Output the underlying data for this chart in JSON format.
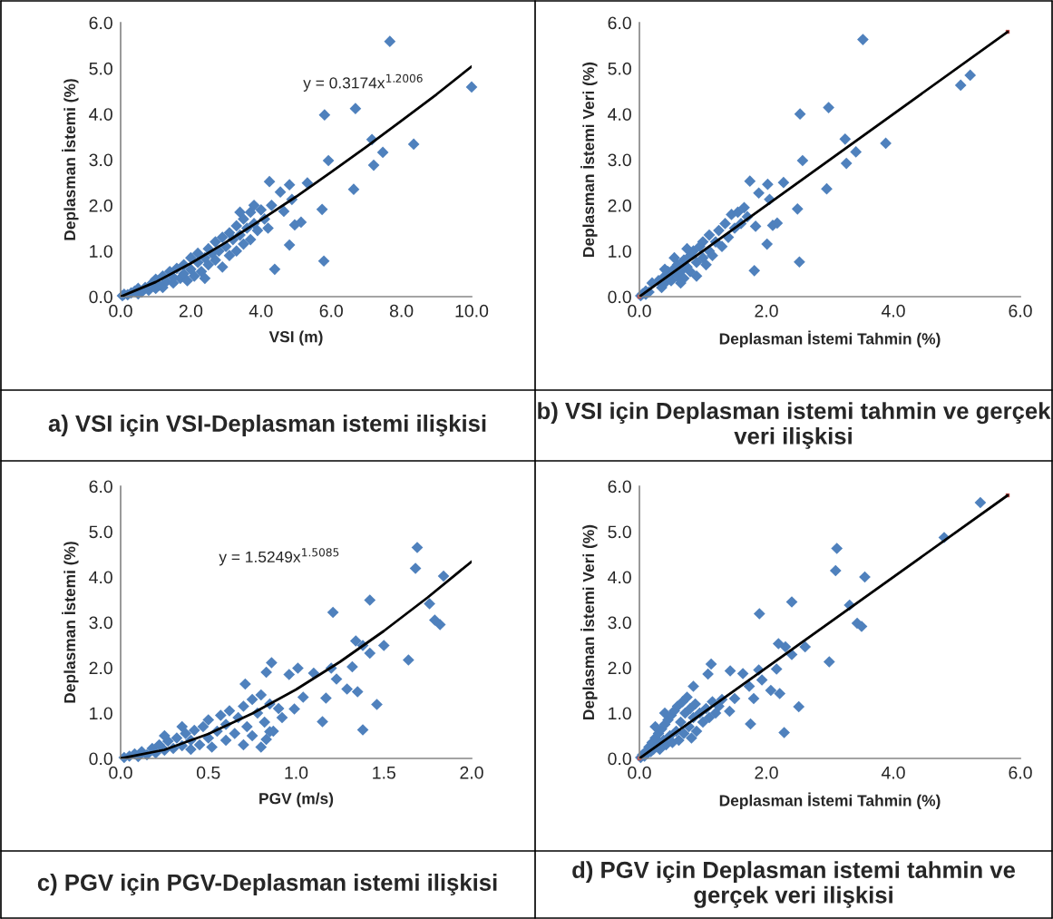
{
  "chart_data": [
    {
      "type": "scatter",
      "title": "a) VSI için VSI-Deplasman istemi ilişkisi",
      "xlabel": "VSI (m)",
      "ylabel": "Deplasman İstemi (%)",
      "xlim": [
        0,
        10
      ],
      "ylim": [
        0,
        6
      ],
      "xticks": [
        {
          "value": 0,
          "label": "0.0"
        },
        {
          "value": 2,
          "label": "2.0"
        },
        {
          "value": 4,
          "label": "4.0"
        },
        {
          "value": 6,
          "label": "6.0"
        },
        {
          "value": 8,
          "label": "8.0"
        },
        {
          "value": 10,
          "label": "10.0"
        }
      ],
      "yticks": [
        {
          "value": 0,
          "label": "0.0"
        },
        {
          "value": 1,
          "label": "1.0"
        },
        {
          "value": 2,
          "label": "2.0"
        },
        {
          "value": 3,
          "label": "3.0"
        },
        {
          "value": 4,
          "label": "4.0"
        },
        {
          "value": 5,
          "label": "5.0"
        },
        {
          "value": 6,
          "label": "6.0"
        }
      ],
      "annotations": [
        "y = 0.3174x$^{1.2006}$"
      ],
      "series": [
        {
          "marker": "diamond",
          "color": "#4f81bd",
          "x": [
            7.67,
            5.81,
            6.69,
            7.16,
            8.35,
            7.47,
            7.21,
            5.92,
            6.64,
            5.74,
            5.79,
            4.39,
            4.81,
            4.24,
            4.81,
            5.32,
            4.55,
            4.88,
            4.96,
            5.14,
            4.65,
            10.0,
            0.05,
            0.1,
            0.2,
            0.3,
            0.4,
            0.5,
            0.5,
            0.6,
            0.7,
            0.8,
            0.9,
            1.0,
            1.0,
            1.1,
            1.2,
            1.2,
            1.3,
            1.4,
            1.5,
            1.5,
            1.6,
            1.7,
            1.8,
            1.8,
            1.9,
            2.0,
            2.0,
            2.1,
            2.2,
            2.2,
            2.3,
            2.4,
            2.4,
            2.5,
            2.5,
            2.6,
            2.7,
            2.7,
            2.8,
            2.9,
            2.9,
            3.0,
            3.1,
            3.1,
            3.2,
            3.3,
            3.3,
            3.4,
            3.5,
            3.5,
            3.6,
            3.7,
            3.7,
            3.8,
            3.9,
            4.0,
            4.1,
            4.2,
            4.3,
            3.8,
            3.4
          ],
          "values": [
            5.59,
            3.98,
            4.12,
            3.44,
            3.34,
            3.16,
            2.88,
            2.98,
            2.35,
            1.91,
            0.78,
            0.6,
            1.13,
            2.52,
            2.45,
            2.49,
            2.29,
            2.13,
            1.57,
            1.63,
            1.87,
            4.59,
            0.02,
            0.05,
            0.04,
            0.08,
            0.12,
            0.06,
            0.18,
            0.1,
            0.2,
            0.14,
            0.3,
            0.18,
            0.38,
            0.25,
            0.45,
            0.2,
            0.33,
            0.55,
            0.3,
            0.42,
            0.62,
            0.4,
            0.7,
            0.5,
            0.35,
            0.6,
            0.85,
            0.45,
            0.75,
            0.95,
            0.55,
            0.85,
            0.4,
            1.05,
            0.7,
            0.95,
            1.2,
            0.8,
            1.0,
            1.3,
            0.65,
            1.1,
            1.4,
            0.9,
            1.25,
            1.55,
            1.0,
            1.35,
            1.7,
            1.15,
            1.5,
            1.85,
            1.25,
            1.6,
            1.45,
            1.9,
            1.7,
            1.5,
            2.0,
            2.0,
            1.85
          ]
        },
        {
          "type": "line",
          "color": "#000000",
          "x": [
            0,
            1,
            2,
            3,
            4,
            5,
            6,
            7,
            8,
            9,
            10
          ],
          "values": [
            0,
            0.32,
            0.73,
            1.19,
            1.68,
            2.19,
            2.73,
            3.28,
            3.85,
            4.43,
            5.04
          ]
        }
      ]
    },
    {
      "type": "scatter",
      "title": "b) VSI için Deplasman istemi tahmin ve gerçek veri ilişkisi",
      "xlabel": "Deplasman İstemi Tahmin (%)",
      "ylabel": "Deplasman İstemi Veri (%)",
      "xlim": [
        0,
        6
      ],
      "ylim": [
        0,
        6
      ],
      "xticks": [
        {
          "value": 0,
          "label": "0.0"
        },
        {
          "value": 2,
          "label": "2.0"
        },
        {
          "value": 4,
          "label": "4.0"
        },
        {
          "value": 6,
          "label": "6.0"
        }
      ],
      "yticks": [
        {
          "value": 0,
          "label": "0.0"
        },
        {
          "value": 1,
          "label": "1.0"
        },
        {
          "value": 2,
          "label": "2.0"
        },
        {
          "value": 3,
          "label": "3.0"
        },
        {
          "value": 4,
          "label": "4.0"
        },
        {
          "value": 5,
          "label": "5.0"
        },
        {
          "value": 6,
          "label": "6.0"
        }
      ],
      "series": [
        {
          "marker": "diamond",
          "color": "#4f81bd",
          "x": [
            3.52,
            5.06,
            5.21,
            2.53,
            2.98,
            3.24,
            3.88,
            3.41,
            3.26,
            2.57,
            2.95,
            2.49,
            2.52,
            1.81,
            2.01,
            1.74,
            2.02,
            2.27,
            1.88,
            2.05,
            2.1,
            2.17,
            1.83,
            0.02,
            0.05,
            0.1,
            0.1,
            0.15,
            0.3,
            0.35,
            0.4,
            0.4,
            0.45,
            0.5,
            0.5,
            0.55,
            0.6,
            0.6,
            0.65,
            0.7,
            0.7,
            0.75,
            0.8,
            0.8,
            0.85,
            0.9,
            0.9,
            0.95,
            1.0,
            1.0,
            1.05,
            1.1,
            1.1,
            1.15,
            1.2,
            1.25,
            1.3,
            1.35,
            1.4,
            1.45,
            1.5,
            1.55,
            1.6,
            1.65,
            1.7,
            0.55,
            0.75,
            0.65,
            0.4,
            0.2
          ],
          "values": [
            5.63,
            4.63,
            4.85,
            4.0,
            4.14,
            3.45,
            3.36,
            3.17,
            2.92,
            2.98,
            2.36,
            1.92,
            0.76,
            0.57,
            1.15,
            2.53,
            2.46,
            2.5,
            2.27,
            2.13,
            1.56,
            1.61,
            1.54,
            0.02,
            0.06,
            0.05,
            0.12,
            0.1,
            0.35,
            0.2,
            0.45,
            0.3,
            0.55,
            0.35,
            0.5,
            0.62,
            0.45,
            0.7,
            0.55,
            0.8,
            0.4,
            0.65,
            0.9,
            0.55,
            1.0,
            0.75,
            0.45,
            1.1,
            0.85,
            1.2,
            0.7,
            1.0,
            1.35,
            0.9,
            1.2,
            1.45,
            1.1,
            1.6,
            1.3,
            1.8,
            1.5,
            1.85,
            1.6,
            1.95,
            1.75,
            0.85,
            1.05,
            0.3,
            0.6,
            0.3
          ]
        },
        {
          "type": "line",
          "color": "#000000",
          "x": [
            0,
            5.8
          ],
          "values": [
            0,
            5.8
          ]
        },
        {
          "color": "#c0504d",
          "marker": "square",
          "x": [
            0,
            5.8
          ],
          "values": [
            0,
            5.8
          ]
        }
      ]
    },
    {
      "type": "scatter",
      "title": "c) PGV için PGV-Deplasman istemi ilişkisi",
      "xlabel": "PGV (m/s)",
      "ylabel": "Deplasman İstemi (%)",
      "xlim": [
        0,
        2
      ],
      "ylim": [
        0,
        6
      ],
      "xticks": [
        {
          "value": 0,
          "label": "0.0"
        },
        {
          "value": 0.5,
          "label": "0.5"
        },
        {
          "value": 1,
          "label": "1.0"
        },
        {
          "value": 1.5,
          "label": "1.5"
        },
        {
          "value": 2,
          "label": "2.0"
        }
      ],
      "yticks": [
        {
          "value": 0,
          "label": "0.0"
        },
        {
          "value": 1,
          "label": "1.0"
        },
        {
          "value": 2,
          "label": "2.0"
        },
        {
          "value": 3,
          "label": "3.0"
        },
        {
          "value": 4,
          "label": "4.0"
        },
        {
          "value": 5,
          "label": "5.0"
        },
        {
          "value": 6,
          "label": "6.0"
        }
      ],
      "annotations": [
        "y = 1.5249x$^{1.5085}$"
      ],
      "series": [
        {
          "marker": "diamond",
          "color": "#4f81bd",
          "x": [
            1.69,
            1.68,
            1.84,
            1.42,
            1.21,
            1.76,
            1.79,
            1.82,
            1.34,
            1.38,
            1.42,
            1.5,
            1.64,
            1.32,
            1.29,
            1.35,
            1.46,
            1.15,
            1.38,
            0.86,
            0.83,
            0.71,
            1.17,
            1.2,
            1.23,
            1.01,
            1.1,
            0.96,
            1.04,
            0.99,
            0.85,
            0.83,
            0.02,
            0.05,
            0.08,
            0.1,
            0.12,
            0.15,
            0.18,
            0.2,
            0.22,
            0.25,
            0.27,
            0.3,
            0.32,
            0.35,
            0.37,
            0.4,
            0.4,
            0.42,
            0.45,
            0.47,
            0.5,
            0.5,
            0.52,
            0.55,
            0.57,
            0.6,
            0.6,
            0.62,
            0.65,
            0.67,
            0.7,
            0.7,
            0.72,
            0.75,
            0.75,
            0.78,
            0.8,
            0.8,
            0.82,
            0.85,
            0.87,
            0.9,
            0.92,
            0.35,
            0.25
          ],
          "values": [
            4.65,
            4.19,
            4.02,
            3.49,
            3.22,
            3.41,
            3.05,
            2.95,
            2.59,
            2.49,
            2.32,
            2.49,
            2.17,
            2.02,
            1.53,
            1.47,
            1.19,
            0.81,
            0.63,
            2.11,
            1.9,
            1.64,
            1.33,
            1.99,
            1.75,
            1.99,
            1.88,
            1.85,
            1.35,
            1.09,
            0.59,
            0.42,
            0.02,
            0.05,
            0.1,
            0.04,
            0.15,
            0.08,
            0.22,
            0.12,
            0.3,
            0.18,
            0.38,
            0.22,
            0.45,
            0.28,
            0.55,
            0.2,
            0.4,
            0.62,
            0.3,
            0.7,
            0.45,
            0.85,
            0.25,
            0.6,
            0.95,
            0.4,
            0.75,
            1.05,
            0.55,
            0.9,
            0.3,
            1.15,
            0.7,
            1.3,
            0.5,
            1.0,
            0.25,
            1.4,
            0.8,
            1.2,
            0.6,
            1.1,
            0.9,
            0.7,
            0.5
          ]
        },
        {
          "type": "line",
          "color": "#000000",
          "x": [
            0,
            0.25,
            0.5,
            0.75,
            1.0,
            1.25,
            1.5,
            1.75,
            2.0
          ],
          "values": [
            0,
            0.19,
            0.54,
            0.99,
            1.52,
            2.13,
            2.81,
            3.55,
            4.34
          ]
        }
      ]
    },
    {
      "type": "scatter",
      "title": "d) PGV için Deplasman istemi tahmin ve gerçek veri ilişkisi",
      "xlabel": "Deplasman İstemi Tahmin (%)",
      "ylabel": "Deplasman İstemi Veri (%)",
      "xlim": [
        0,
        6
      ],
      "ylim": [
        0,
        6
      ],
      "xticks": [
        {
          "value": 0,
          "label": "0.0"
        },
        {
          "value": 2,
          "label": "2.0"
        },
        {
          "value": 4,
          "label": "4.0"
        },
        {
          "value": 6,
          "label": "6.0"
        }
      ],
      "yticks": [
        {
          "value": 0,
          "label": "0.0"
        },
        {
          "value": 1,
          "label": "1.0"
        },
        {
          "value": 2,
          "label": "2.0"
        },
        {
          "value": 3,
          "label": "3.0"
        },
        {
          "value": 4,
          "label": "4.0"
        },
        {
          "value": 5,
          "label": "5.0"
        },
        {
          "value": 6,
          "label": "6.0"
        }
      ],
      "series": [
        {
          "marker": "diamond",
          "color": "#4f81bd",
          "x": [
            5.37,
            4.8,
            3.11,
            3.09,
            3.55,
            2.4,
            3.31,
            1.89,
            3.43,
            3.5,
            2.19,
            2.3,
            2.4,
            2.61,
            2.99,
            2.16,
            2.07,
            2.21,
            2.51,
            1.75,
            2.28,
            1.13,
            1.08,
            0.85,
            1.8,
            1.88,
            1.93,
            1.73,
            1.43,
            1.63,
            1.5,
            1.42,
            0.02,
            0.05,
            0.08,
            0.1,
            0.12,
            0.15,
            0.18,
            0.2,
            0.22,
            0.25,
            0.28,
            0.3,
            0.32,
            0.35,
            0.38,
            0.4,
            0.42,
            0.45,
            0.48,
            0.5,
            0.52,
            0.55,
            0.58,
            0.6,
            0.62,
            0.65,
            0.68,
            0.7,
            0.72,
            0.75,
            0.78,
            0.8,
            0.82,
            0.85,
            0.88,
            0.9,
            0.95,
            1.0,
            1.05,
            1.1,
            1.15,
            1.2,
            1.25,
            0.4,
            0.25,
            1.3
          ],
          "values": [
            5.64,
            4.87,
            4.63,
            4.14,
            4.0,
            3.45,
            3.38,
            3.19,
            2.98,
            2.91,
            2.53,
            2.46,
            2.29,
            2.46,
            2.13,
            1.97,
            1.5,
            1.43,
            1.14,
            0.76,
            0.57,
            2.08,
            1.86,
            1.59,
            1.32,
            1.95,
            1.73,
            1.59,
            1.93,
            1.87,
            1.32,
            1.04,
            0.02,
            0.08,
            0.05,
            0.15,
            0.1,
            0.25,
            0.15,
            0.35,
            0.2,
            0.45,
            0.3,
            0.55,
            0.2,
            0.65,
            0.4,
            0.75,
            0.3,
            0.85,
            0.5,
            0.95,
            0.35,
            1.05,
            0.6,
            1.15,
            0.4,
            0.8,
            1.25,
            0.55,
            1.0,
            1.35,
            0.7,
            1.1,
            0.45,
            0.9,
            1.2,
            0.6,
            1.0,
            0.8,
            1.1,
            0.9,
            1.25,
            1.0,
            1.15,
            1.0,
            0.7,
            1.3
          ]
        },
        {
          "type": "line",
          "color": "#000000",
          "x": [
            0,
            5.8
          ],
          "values": [
            0,
            5.8
          ]
        },
        {
          "color": "#c0504d",
          "marker": "square",
          "x": [
            0,
            5.8
          ],
          "values": [
            0,
            5.8
          ]
        }
      ]
    }
  ]
}
